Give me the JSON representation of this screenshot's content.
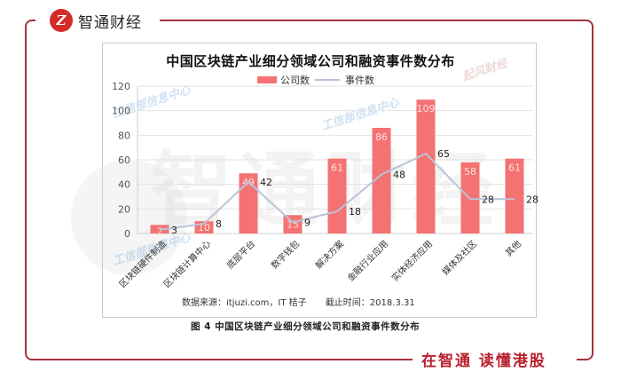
{
  "brand": {
    "logo_letter": "Z",
    "name": "智通财经",
    "slogan": "在智通 读懂港股"
  },
  "watermarks": [
    "工信部信息中心",
    "工信部信息中心",
    "工信部信息中心",
    "起风财经"
  ],
  "chart_data": {
    "type": "bar",
    "title": "中国区块链产业细分领域公司和融资事件数分布",
    "categories": [
      "区块链硬件制造",
      "区块链计算中心",
      "底层平台",
      "数字钱包",
      "解决方案",
      "金融行业应用",
      "实体经济应用",
      "媒体及社区",
      "其他"
    ],
    "series": [
      {
        "name": "公司数",
        "type": "bar",
        "color": "#f47272",
        "values": [
          7,
          10,
          49,
          15,
          61,
          86,
          109,
          58,
          61
        ]
      },
      {
        "name": "事件数",
        "type": "line",
        "color": "#b9c4d8",
        "values": [
          3,
          8,
          42,
          9,
          18,
          48,
          65,
          28,
          28
        ]
      }
    ],
    "xlabel": "",
    "ylabel": "",
    "ylim": [
      0,
      120
    ],
    "yticks": [
      0,
      20,
      40,
      60,
      80,
      100,
      120
    ],
    "grid": true,
    "legend_position": "top"
  },
  "legend": {
    "bar_label": "公司数",
    "line_label": "事件数"
  },
  "source": {
    "text": "数据来源：itjuzi.com，IT 桔子",
    "cutoff": "截止时间：2018.3.31"
  },
  "caption": "图 4 中国区块链产业细分领域公司和融资事件数分布"
}
